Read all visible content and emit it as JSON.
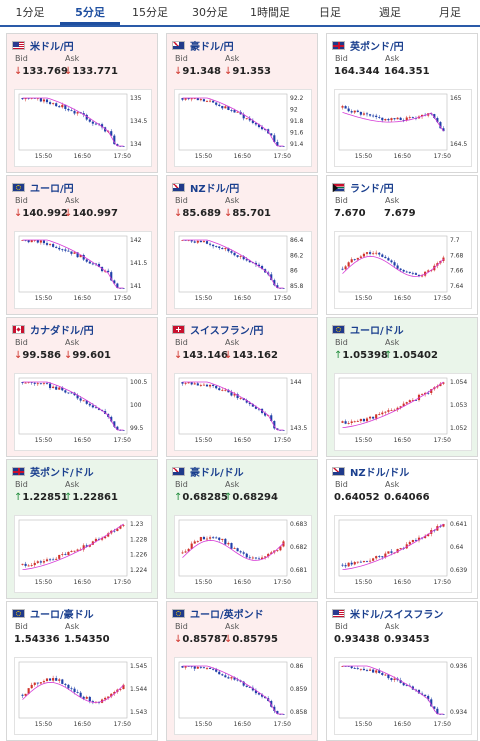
{
  "tabs": [
    {
      "label": "1分足",
      "active": false
    },
    {
      "label": "5分足",
      "active": true
    },
    {
      "label": "15分足",
      "active": false
    },
    {
      "label": "30分足",
      "active": false
    },
    {
      "label": "1時間足",
      "active": false
    },
    {
      "label": "日足",
      "active": false
    },
    {
      "label": "週足",
      "active": false
    },
    {
      "label": "月足",
      "active": false
    }
  ],
  "bid_label": "Bid",
  "ask_label": "Ask",
  "colors": {
    "down": "#d0342c",
    "up": "#1f8b3a",
    "candle_up": "#d0342c",
    "candle_down": "#1f3fa8",
    "ma": "#d63ad6"
  },
  "pairs": [
    {
      "name": "米ドル/円",
      "trend": "down",
      "flags": [
        "us-flag-icon",
        "jp-flag-icon"
      ],
      "bid": "133.769",
      "ask": "133.771",
      "chart_data": {
        "type": "candlestick",
        "x_ticks": [
          "15:50",
          "16:50",
          "17:50"
        ],
        "y_ticks": [
          "135",
          "134.5",
          "134"
        ],
        "ylim": [
          133.7,
          135.3
        ],
        "trend": "down"
      }
    },
    {
      "name": "豪ドル/円",
      "trend": "down",
      "flags": [
        "au-flag-icon",
        "jp-flag-icon"
      ],
      "bid": "91.348",
      "ask": "91.353",
      "chart_data": {
        "type": "candlestick",
        "x_ticks": [
          "15:50",
          "16:50",
          "17:50"
        ],
        "y_ticks": [
          "92.2",
          "92",
          "91.8",
          "91.6",
          "91.4"
        ],
        "ylim": [
          91.3,
          92.3
        ],
        "trend": "down"
      }
    },
    {
      "name": "英ポンド/円",
      "trend": "flat",
      "flags": [
        "gb-flag-icon",
        "jp-flag-icon"
      ],
      "bid": "164.344",
      "ask": "164.351",
      "chart_data": {
        "type": "candlestick",
        "x_ticks": [
          "15:50",
          "16:50",
          "17:50"
        ],
        "y_ticks": [
          "165",
          "164.5"
        ],
        "ylim": [
          164.3,
          165.4
        ],
        "trend": "dip"
      }
    },
    {
      "name": "ユーロ/円",
      "trend": "down",
      "flags": [
        "eu-flag-icon",
        "jp-flag-icon"
      ],
      "bid": "140.992",
      "ask": "140.997",
      "chart_data": {
        "type": "candlestick",
        "x_ticks": [
          "15:50",
          "16:50",
          "17:50"
        ],
        "y_ticks": [
          "142",
          "141.5",
          "141"
        ],
        "ylim": [
          140.9,
          142.3
        ],
        "trend": "down"
      }
    },
    {
      "name": "NZドル/円",
      "trend": "down",
      "flags": [
        "nz-flag-icon",
        "jp-flag-icon"
      ],
      "bid": "85.689",
      "ask": "85.701",
      "chart_data": {
        "type": "candlestick",
        "x_ticks": [
          "15:50",
          "16:50",
          "17:50"
        ],
        "y_ticks": [
          "86.4",
          "86.2",
          "86",
          "85.8"
        ],
        "ylim": [
          85.6,
          86.5
        ],
        "trend": "down"
      }
    },
    {
      "name": "ランド/円",
      "trend": "flat",
      "flags": [
        "za-flag-icon",
        "jp-flag-icon"
      ],
      "bid": "7.670",
      "ask": "7.679",
      "chart_data": {
        "type": "candlestick",
        "x_ticks": [
          "15:50",
          "16:50",
          "17:50"
        ],
        "y_ticks": [
          "7.7",
          "7.68",
          "7.66",
          "7.64"
        ],
        "ylim": [
          7.63,
          7.71
        ],
        "trend": "wave"
      }
    },
    {
      "name": "カナダドル/円",
      "trend": "down",
      "flags": [
        "ca-flag-icon",
        "jp-flag-icon"
      ],
      "bid": "99.586",
      "ask": "99.601",
      "chart_data": {
        "type": "candlestick",
        "x_ticks": [
          "15:50",
          "16:50",
          "17:50"
        ],
        "y_ticks": [
          "100.5",
          "100",
          "99.5"
        ],
        "ylim": [
          99.4,
          100.8
        ],
        "trend": "down"
      }
    },
    {
      "name": "スイスフラン/円",
      "trend": "down",
      "flags": [
        "ch-flag-icon",
        "jp-flag-icon"
      ],
      "bid": "143.146",
      "ask": "143.162",
      "chart_data": {
        "type": "candlestick",
        "x_ticks": [
          "15:50",
          "16:50",
          "17:50"
        ],
        "y_ticks": [
          "144",
          "143.5"
        ],
        "ylim": [
          143.0,
          144.4
        ],
        "trend": "down"
      }
    },
    {
      "name": "ユーロ/ドル",
      "trend": "up",
      "flags": [
        "eu-flag-icon",
        "us-flag-icon"
      ],
      "bid": "1.05398",
      "ask": "1.05402",
      "chart_data": {
        "type": "candlestick",
        "x_ticks": [
          "15:50",
          "16:50",
          "17:50"
        ],
        "y_ticks": [
          "1.054",
          "1.053",
          "1.052"
        ],
        "ylim": [
          1.0512,
          1.0546
        ],
        "trend": "up"
      }
    },
    {
      "name": "英ポンド/ドル",
      "trend": "up",
      "flags": [
        "gb-flag-icon",
        "us-flag-icon"
      ],
      "bid": "1.22851",
      "ask": "1.22861",
      "chart_data": {
        "type": "candlestick",
        "x_ticks": [
          "15:50",
          "16:50",
          "17:50"
        ],
        "y_ticks": [
          "1.23",
          "1.228",
          "1.226",
          "1.224"
        ],
        "ylim": [
          1.2225,
          1.231
        ],
        "trend": "up"
      }
    },
    {
      "name": "豪ドル/ドル",
      "trend": "up",
      "flags": [
        "au-flag-icon",
        "us-flag-icon"
      ],
      "bid": "0.68285",
      "ask": "0.68294",
      "chart_data": {
        "type": "candlestick",
        "x_ticks": [
          "15:50",
          "16:50",
          "17:50"
        ],
        "y_ticks": [
          "0.683",
          "0.682",
          "0.681"
        ],
        "ylim": [
          0.6805,
          0.6836
        ],
        "trend": "wave"
      }
    },
    {
      "name": "NZドル/ドル",
      "trend": "flat",
      "flags": [
        "nz-flag-icon",
        "us-flag-icon"
      ],
      "bid": "0.64052",
      "ask": "0.64066",
      "chart_data": {
        "type": "candlestick",
        "x_ticks": [
          "15:50",
          "16:50",
          "17:50"
        ],
        "y_ticks": [
          "0.641",
          "0.64",
          "0.639"
        ],
        "ylim": [
          0.6384,
          0.6414
        ],
        "trend": "up"
      }
    },
    {
      "name": "ユーロ/豪ドル",
      "trend": "flat",
      "flags": [
        "eu-flag-icon",
        "au-flag-icon"
      ],
      "bid": "1.54336",
      "ask": "1.54350",
      "chart_data": {
        "type": "candlestick",
        "x_ticks": [
          "15:50",
          "16:50",
          "17:50"
        ],
        "y_ticks": [
          "1.545",
          "1.544",
          "1.543"
        ],
        "ylim": [
          1.5425,
          1.5455
        ],
        "trend": "wave"
      }
    },
    {
      "name": "ユーロ/英ポンド",
      "trend": "down",
      "flags": [
        "eu-flag-icon",
        "gb-flag-icon"
      ],
      "bid": "0.85787",
      "ask": "0.85795",
      "chart_data": {
        "type": "candlestick",
        "x_ticks": [
          "15:50",
          "16:50",
          "17:50"
        ],
        "y_ticks": [
          "0.86",
          "0.859",
          "0.858"
        ],
        "ylim": [
          0.8575,
          0.8607
        ],
        "trend": "down"
      }
    },
    {
      "name": "米ドル/スイスフラン",
      "trend": "flat",
      "flags": [
        "us-flag-icon",
        "ch-flag-icon"
      ],
      "bid": "0.93438",
      "ask": "0.93453",
      "chart_data": {
        "type": "candlestick",
        "x_ticks": [
          "15:50",
          "16:50",
          "17:50"
        ],
        "y_ticks": [
          "0.936",
          "0.934"
        ],
        "ylim": [
          0.9332,
          0.9372
        ],
        "trend": "down"
      }
    }
  ]
}
